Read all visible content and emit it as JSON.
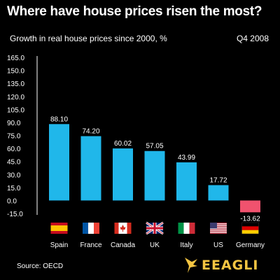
{
  "header": {
    "title": "Where have house prices risen the most?",
    "subtitle": "Growth in real house prices since 2000, %",
    "period": "Q4 2008"
  },
  "footer": {
    "source": "Source: OECD",
    "brand": "EEAGLI",
    "brand_color": "#f4c542"
  },
  "colors": {
    "positive_bar": "#20b7ea",
    "negative_bar": "#f0526e",
    "background": "#000000"
  },
  "chart_data": {
    "type": "bar",
    "title": "Where have house prices risen the most?",
    "subtitle": "Growth in real house prices since 2000, %",
    "categories": [
      "Spain",
      "France",
      "Canada",
      "UK",
      "Italy",
      "US",
      "Germany"
    ],
    "values": [
      88.1,
      74.2,
      60.02,
      57.05,
      43.99,
      17.72,
      -13.62
    ],
    "value_labels": [
      "88.10",
      "74.20",
      "60.02",
      "57.05",
      "43.99",
      "17.72",
      "-13.62"
    ],
    "yticks": [
      "165.0",
      "150.0",
      "135.0",
      "120.0",
      "105.0",
      "90.0",
      "75.0",
      "60.0",
      "45.0",
      "30.0",
      "15.0",
      "0.0",
      "-15.0"
    ],
    "ylim": [
      -15,
      165
    ],
    "grid": false,
    "legend": "none",
    "flags": [
      "spain-flag",
      "france-flag",
      "canada-flag",
      "uk-flag",
      "italy-flag",
      "us-flag",
      "germany-flag"
    ]
  }
}
